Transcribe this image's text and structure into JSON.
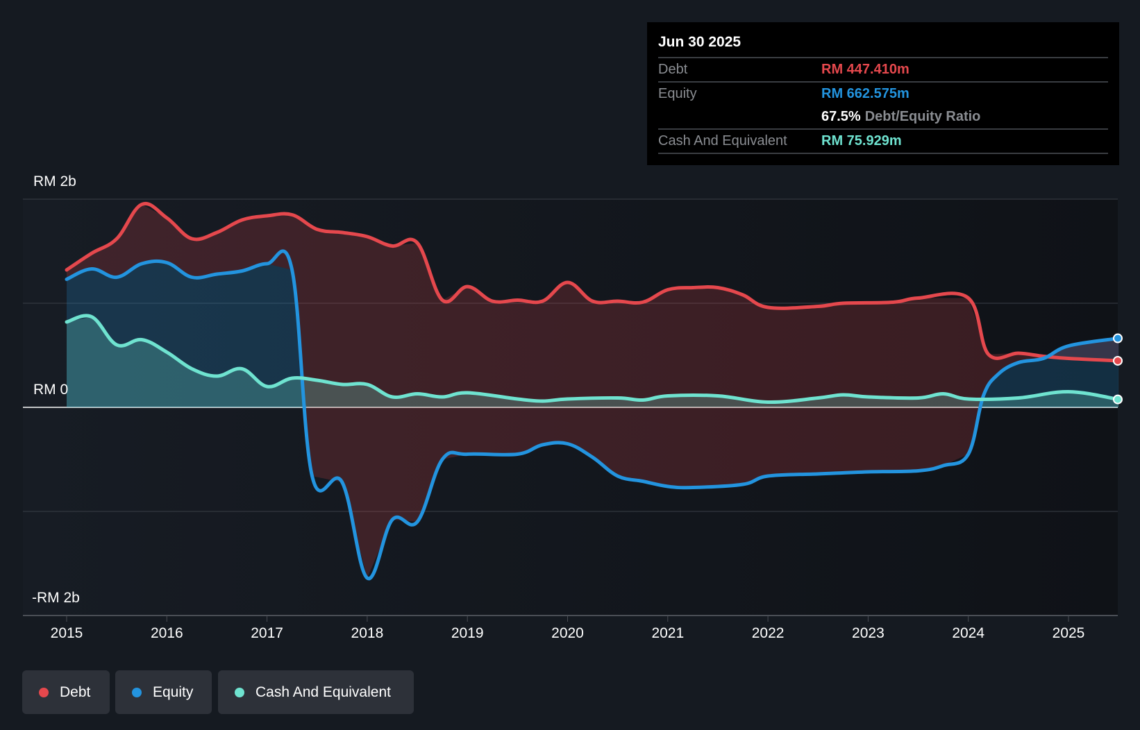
{
  "tooltip": {
    "date": "Jun 30 2025",
    "rows": [
      {
        "label": "Debt",
        "value": "RM 447.410m"
      },
      {
        "label": "Equity",
        "value": "RM 662.575m"
      },
      {
        "label": "",
        "value": "67.5%",
        "suffix": "Debt/Equity Ratio"
      },
      {
        "label": "Cash And Equivalent",
        "value": "RM 75.929m"
      }
    ]
  },
  "legend": [
    {
      "label": "Debt",
      "color": "#e5484d"
    },
    {
      "label": "Equity",
      "color": "#2394df"
    },
    {
      "label": "Cash And Equivalent",
      "color": "#6fe3d0"
    }
  ],
  "chart_data": {
    "type": "line",
    "title": "",
    "xlabel": "",
    "ylabel": "",
    "unit": "RM billions",
    "xlim": [
      2014.56,
      2025.52
    ],
    "ylim": [
      -2,
      2
    ],
    "y_tick_labels": [
      "RM 2b",
      "RM 0",
      "-RM 2b"
    ],
    "x_ticks": [
      2015,
      2016,
      2017,
      2018,
      2019,
      2020,
      2021,
      2022,
      2023,
      2024,
      2025
    ],
    "x_tick_labels": [
      "2015",
      "2016",
      "2017",
      "2018",
      "2019",
      "2020",
      "2021",
      "2022",
      "2023",
      "2024",
      "2025"
    ],
    "grid": true,
    "series": [
      {
        "name": "Debt",
        "color": "#e5484d",
        "x": [
          2015,
          2015.25,
          2015.5,
          2015.75,
          2016,
          2016.25,
          2016.5,
          2016.75,
          2017,
          2017.25,
          2017.5,
          2017.75,
          2018,
          2018.25,
          2018.5,
          2018.75,
          2019,
          2019.25,
          2019.5,
          2019.75,
          2020,
          2020.25,
          2020.5,
          2020.75,
          2021,
          2021.25,
          2021.5,
          2021.75,
          2022,
          2022.5,
          2022.75,
          2023.25,
          2023.5,
          2024,
          2024.2,
          2024.5,
          2024.75,
          2025,
          2025.5
        ],
        "y": [
          1.32,
          1.48,
          1.62,
          1.95,
          1.82,
          1.62,
          1.68,
          1.8,
          1.84,
          1.85,
          1.71,
          1.68,
          1.64,
          1.55,
          1.58,
          1.03,
          1.16,
          1.02,
          1.03,
          1.02,
          1.2,
          1.02,
          1.02,
          1.01,
          1.13,
          1.15,
          1.15,
          1.08,
          0.96,
          0.97,
          1.0,
          1.01,
          1.05,
          1.05,
          0.51,
          0.52,
          0.49,
          0.47,
          0.447
        ]
      },
      {
        "name": "Equity",
        "color": "#2394df",
        "x": [
          2015,
          2015.25,
          2015.5,
          2015.75,
          2016,
          2016.25,
          2016.5,
          2016.75,
          2017,
          2017.25,
          2017.45,
          2017.75,
          2018,
          2018.25,
          2018.5,
          2018.75,
          2019,
          2019.5,
          2019.75,
          2020,
          2020.25,
          2020.5,
          2020.75,
          2021,
          2021.25,
          2021.75,
          2022,
          2022.5,
          2023,
          2023.5,
          2023.75,
          2024,
          2024.15,
          2024.3,
          2024.5,
          2024.75,
          2025,
          2025.5
        ],
        "y": [
          1.23,
          1.33,
          1.25,
          1.38,
          1.39,
          1.25,
          1.28,
          1.31,
          1.38,
          1.32,
          -0.66,
          -0.72,
          -1.64,
          -1.08,
          -1.1,
          -0.5,
          -0.45,
          -0.45,
          -0.36,
          -0.35,
          -0.48,
          -0.66,
          -0.71,
          -0.76,
          -0.77,
          -0.74,
          -0.66,
          -0.64,
          -0.62,
          -0.61,
          -0.56,
          -0.45,
          0.11,
          0.32,
          0.43,
          0.47,
          0.59,
          0.663
        ]
      },
      {
        "name": "Cash And Equivalent",
        "color": "#6fe3d0",
        "x": [
          2015,
          2015.25,
          2015.5,
          2015.75,
          2016,
          2016.25,
          2016.5,
          2016.75,
          2017,
          2017.25,
          2017.5,
          2017.75,
          2018,
          2018.25,
          2018.5,
          2018.75,
          2019,
          2019.5,
          2019.75,
          2020,
          2020.5,
          2020.75,
          2021,
          2021.5,
          2022,
          2022.5,
          2022.75,
          2023,
          2023.5,
          2023.75,
          2024,
          2024.5,
          2025,
          2025.5
        ],
        "y": [
          0.82,
          0.87,
          0.6,
          0.65,
          0.53,
          0.37,
          0.3,
          0.37,
          0.2,
          0.28,
          0.26,
          0.22,
          0.22,
          0.1,
          0.13,
          0.1,
          0.14,
          0.08,
          0.06,
          0.08,
          0.09,
          0.07,
          0.11,
          0.11,
          0.05,
          0.09,
          0.12,
          0.1,
          0.09,
          0.13,
          0.08,
          0.09,
          0.15,
          0.076
        ]
      }
    ]
  }
}
